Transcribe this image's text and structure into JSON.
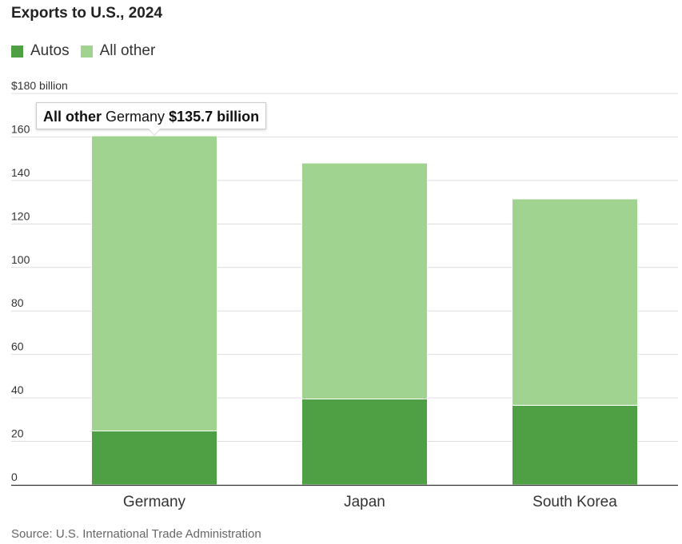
{
  "title": "Exports to U.S., 2024",
  "legend": [
    {
      "label": "Autos",
      "color": "#4f9f45"
    },
    {
      "label": "All other",
      "color": "#a1d390"
    }
  ],
  "source": "Source: U.S. International Trade Administration",
  "tooltip": {
    "series": "All other",
    "category": "Germany",
    "value": "$135.7 billion"
  },
  "chart_data": {
    "type": "bar",
    "stacked": true,
    "categories": [
      "Germany",
      "Japan",
      "South Korea"
    ],
    "series": [
      {
        "name": "Autos",
        "values": [
          24.8,
          39.5,
          36.6
        ],
        "color": "#4f9f45"
      },
      {
        "name": "All other",
        "values": [
          135.7,
          108.5,
          94.9
        ],
        "color": "#a1d390"
      }
    ],
    "ylim": [
      0,
      180
    ],
    "yticks": [
      0,
      20,
      40,
      60,
      80,
      100,
      120,
      140,
      160,
      180
    ],
    "ytick_labels": [
      "0",
      "20",
      "40",
      "60",
      "80",
      "100",
      "120",
      "140",
      "160",
      "$180 billion"
    ],
    "grid": true,
    "legend_position": "top-left"
  }
}
